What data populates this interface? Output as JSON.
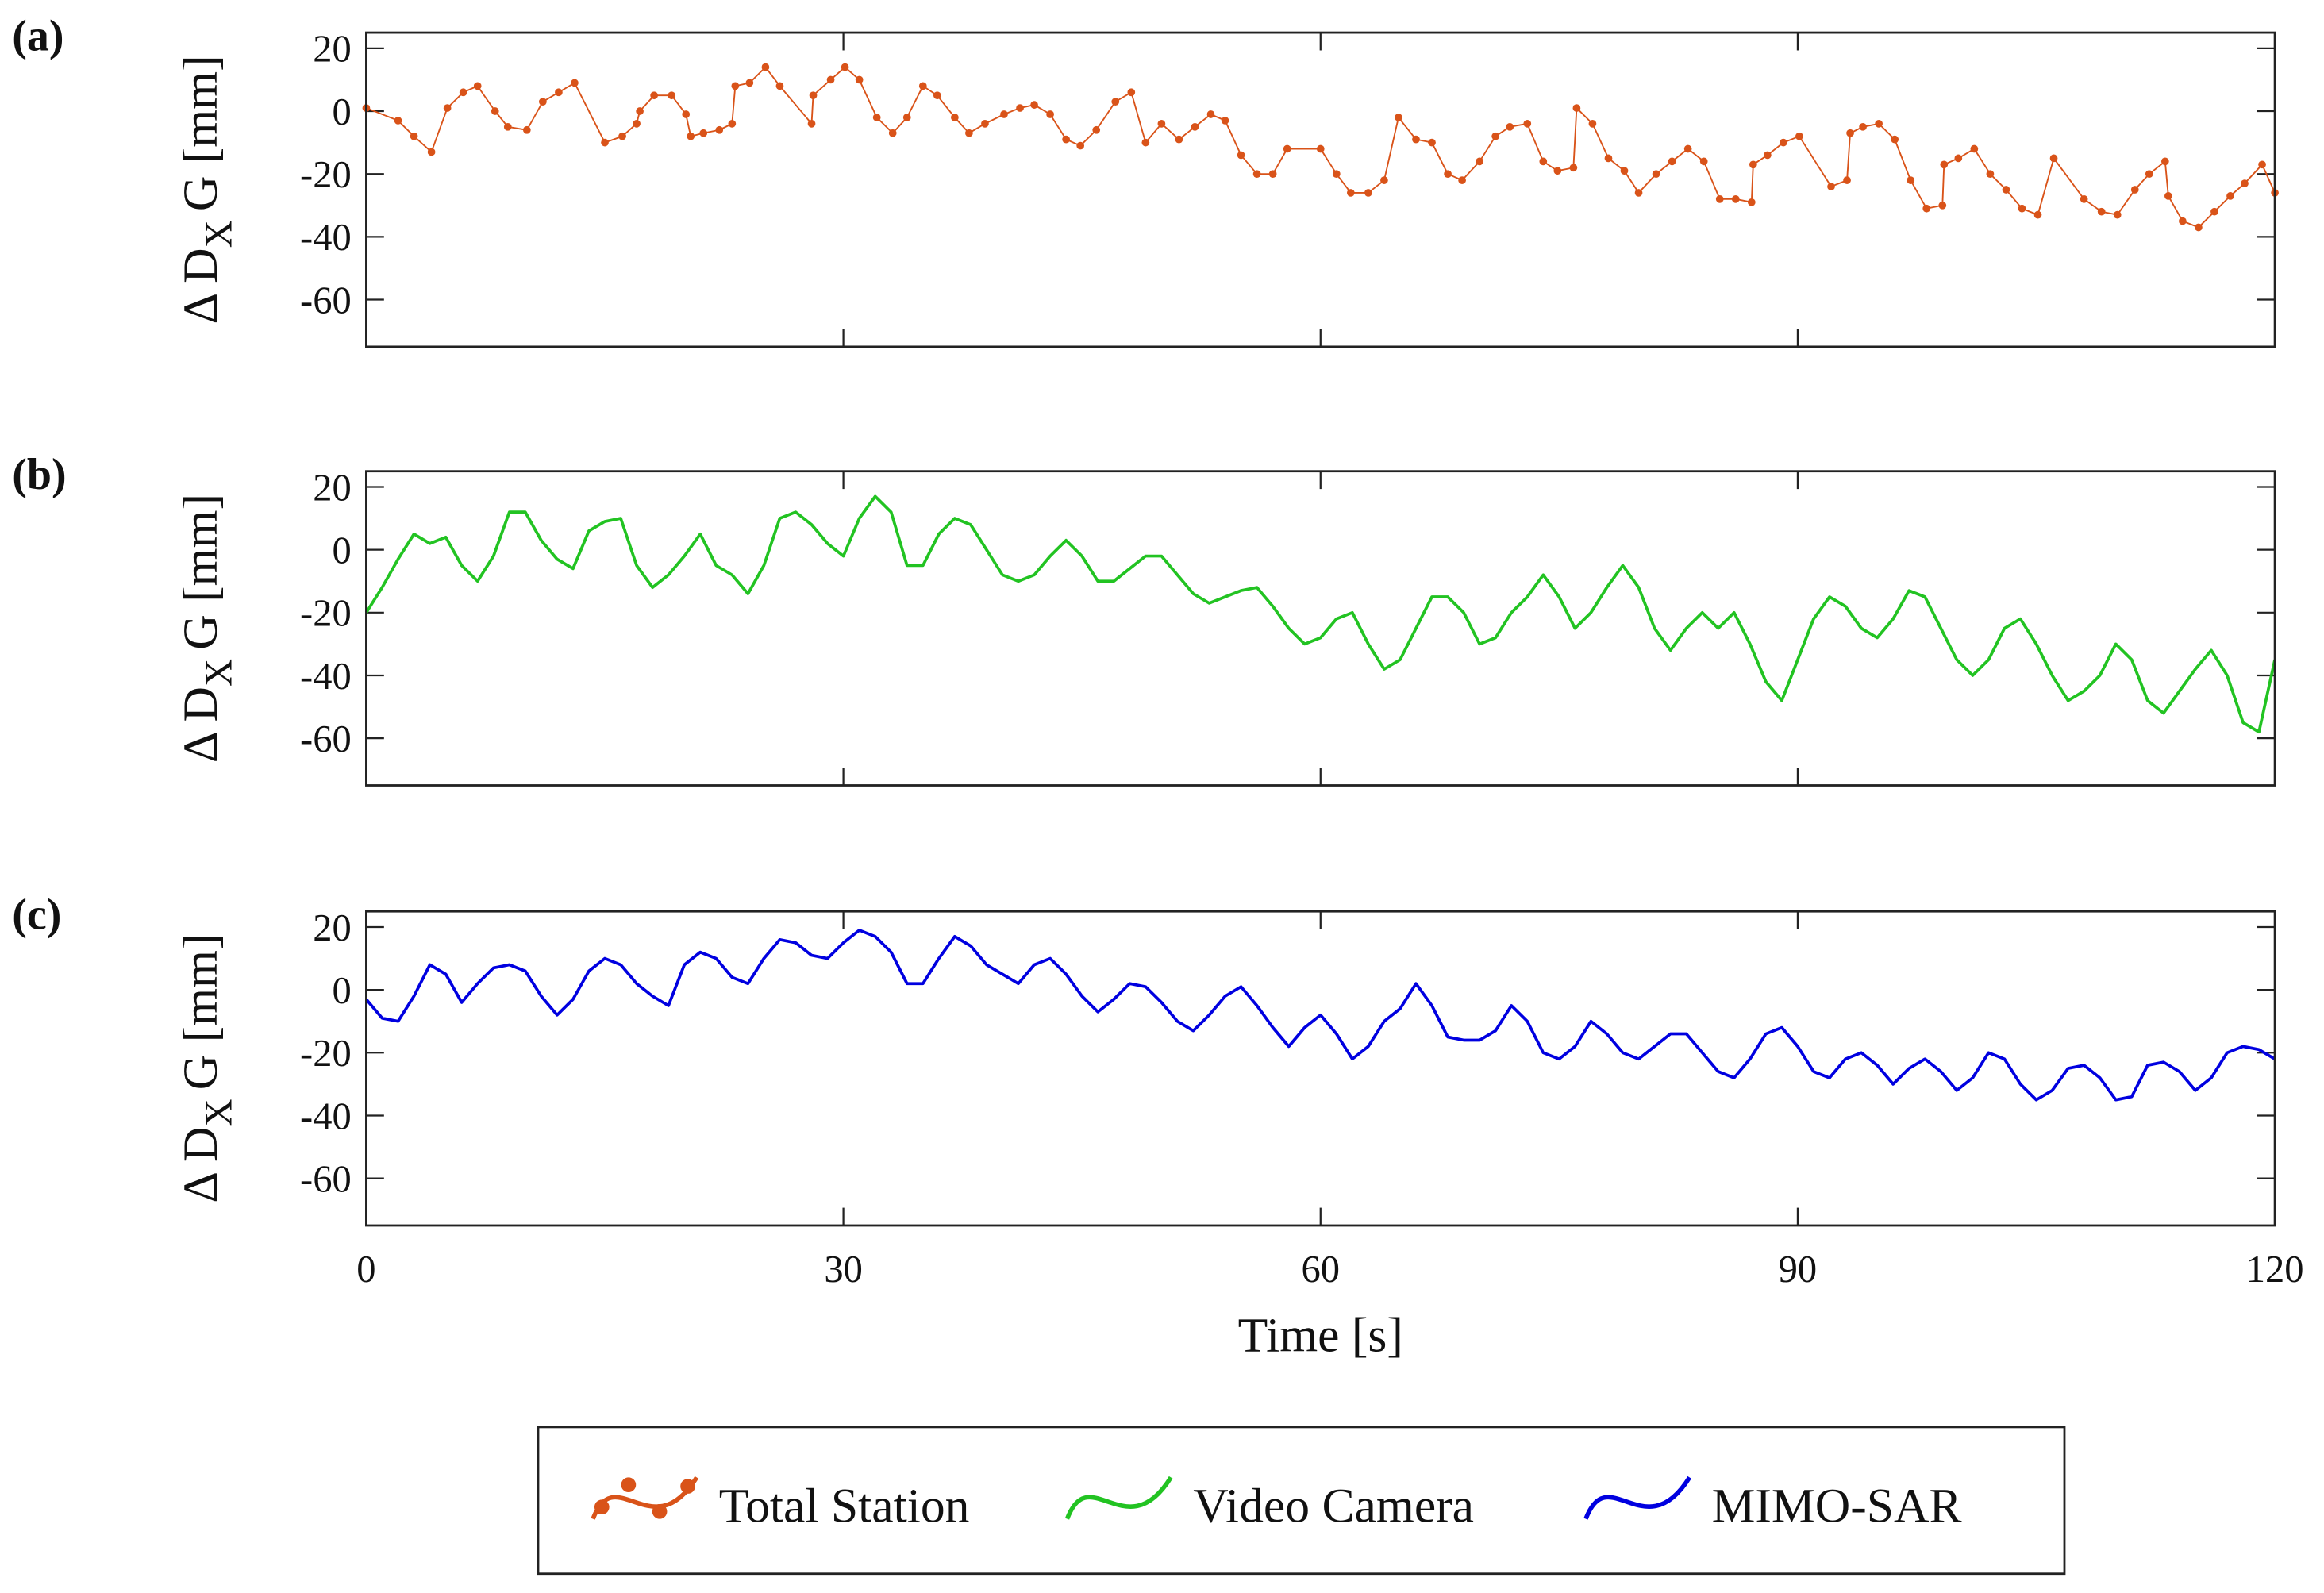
{
  "chart_data": [
    {
      "type": "line",
      "panel_label": "(a)",
      "ylabel": {
        "main": "Δ D",
        "sub": "X",
        "rest": "G [mm]"
      },
      "xlim": [
        0,
        120
      ],
      "ylim": [
        -75,
        25
      ],
      "xticks": [
        0,
        30,
        60,
        90,
        120
      ],
      "yticks": [
        20,
        0,
        -20,
        -40,
        -60
      ],
      "x": [
        0,
        2.0,
        3.0,
        4.1,
        5.1,
        6.1,
        7.0,
        8.1,
        8.9,
        10.1,
        11.1,
        12.1,
        13.1,
        15.0,
        16.1,
        17.0,
        17.2,
        18.1,
        19.2,
        20.1,
        20.4,
        21.2,
        22.2,
        23.0,
        23.2,
        24.1,
        25.1,
        26.0,
        28.0,
        28.1,
        29.2,
        30.1,
        31.0,
        32.1,
        33.1,
        34.0,
        35.0,
        35.9,
        37.0,
        37.9,
        38.9,
        40.1,
        41.1,
        42.0,
        43.0,
        44.0,
        44.9,
        45.9,
        47.1,
        48.1,
        49.0,
        50.0,
        51.1,
        52.1,
        53.1,
        54.0,
        55.0,
        56.0,
        57.0,
        57.9,
        60.0,
        61.0,
        61.9,
        63.0,
        64.0,
        64.9,
        66.0,
        67.0,
        68.0,
        68.9,
        70.0,
        71.0,
        71.9,
        73.0,
        74.0,
        74.9,
        75.9,
        76.1,
        77.1,
        78.1,
        79.1,
        80.0,
        81.1,
        82.1,
        83.1,
        84.1,
        85.1,
        86.1,
        87.1,
        87.2,
        88.1,
        89.1,
        90.1,
        92.1,
        93.1,
        93.3,
        94.1,
        95.1,
        96.1,
        97.1,
        98.1,
        99.1,
        99.2,
        100.1,
        101.1,
        102.1,
        103.1,
        104.1,
        105.1,
        106.1,
        108.0,
        109.1,
        110.1,
        111.2,
        112.1,
        113.1,
        113.3,
        114.2,
        115.2,
        116.2,
        117.2,
        118.1,
        119.2,
        120
      ],
      "series": [
        {
          "name": "Total Station",
          "color": "#d95319",
          "marker": true,
          "values": [
            1,
            -3,
            -8,
            -13,
            1,
            6,
            8,
            0,
            -5,
            -6,
            3,
            6,
            9,
            -10,
            -8,
            -4,
            0,
            5,
            5,
            -1,
            -8,
            -7,
            -6,
            -4,
            8,
            9,
            14,
            8,
            -4,
            5,
            10,
            14,
            10,
            -2,
            -7,
            -2,
            8,
            5,
            -2,
            -7,
            -4,
            -1,
            1,
            2,
            -1,
            -9,
            -11,
            -6,
            3,
            6,
            -10,
            -4,
            -9,
            -5,
            -1,
            -3,
            -14,
            -20,
            -20,
            -12,
            -12,
            -20,
            -26,
            -26,
            -22,
            -2,
            -9,
            -10,
            -20,
            -22,
            -16,
            -8,
            -5,
            -4,
            -16,
            -19,
            -18,
            1,
            -4,
            -15,
            -19,
            -26,
            -20,
            -16,
            -12,
            -16,
            -28,
            -28,
            -29,
            -17,
            -14,
            -10,
            -8,
            -24,
            -22,
            -7,
            -5,
            -4,
            -9,
            -22,
            -31,
            -30,
            -17,
            -15,
            -12,
            -20,
            -25,
            -31,
            -33,
            -15,
            -28,
            -32,
            -33,
            -25,
            -20,
            -16,
            -27,
            -35,
            -37,
            -32,
            -27,
            -23,
            -17,
            -26
          ]
        }
      ]
    },
    {
      "type": "line",
      "panel_label": "(b)",
      "ylabel": {
        "main": "Δ D",
        "sub": "X",
        "rest": "G [mm]"
      },
      "xlim": [
        0,
        120
      ],
      "ylim": [
        -75,
        25
      ],
      "xticks": [
        0,
        30,
        60,
        90,
        120
      ],
      "yticks": [
        20,
        0,
        -20,
        -40,
        -60
      ],
      "x": [
        0,
        1,
        2,
        3,
        4,
        5,
        6,
        7,
        8,
        9,
        10,
        11,
        12,
        13,
        14,
        15,
        16,
        17,
        18,
        19,
        20,
        21,
        22,
        23,
        24,
        25,
        26,
        27,
        28,
        29,
        30,
        31,
        32,
        33,
        34,
        35,
        36,
        37,
        38,
        39,
        40,
        41,
        42,
        43,
        44,
        45,
        46,
        47,
        48,
        49,
        50,
        51,
        52,
        53,
        54,
        55,
        56,
        57,
        58,
        59,
        60,
        61,
        62,
        63,
        64,
        65,
        66,
        67,
        68,
        69,
        70,
        71,
        72,
        73,
        74,
        75,
        76,
        77,
        78,
        79,
        80,
        81,
        82,
        83,
        84,
        85,
        86,
        87,
        88,
        89,
        90,
        91,
        92,
        93,
        94,
        95,
        96,
        97,
        98,
        99,
        100,
        101,
        102,
        103,
        104,
        105,
        106,
        107,
        108,
        109,
        110,
        111,
        112,
        113,
        114,
        115,
        116,
        117,
        118,
        119,
        120
      ],
      "series": [
        {
          "name": "Video Camera",
          "color": "#22c322",
          "values": [
            -20,
            -12,
            -3,
            5,
            2,
            4,
            -5,
            -10,
            -2,
            12,
            12,
            3,
            -3,
            -6,
            6,
            9,
            10,
            -5,
            -12,
            -8,
            -2,
            5,
            -5,
            -8,
            -14,
            -5,
            10,
            12,
            8,
            2,
            -2,
            10,
            17,
            12,
            -5,
            -5,
            5,
            10,
            8,
            0,
            -8,
            -10,
            -8,
            -2,
            3,
            -2,
            -10,
            -10,
            -6,
            -2,
            -2,
            -8,
            -14,
            -17,
            -15,
            -13,
            -12,
            -18,
            -25,
            -30,
            -28,
            -22,
            -20,
            -30,
            -38,
            -35,
            -25,
            -15,
            -15,
            -20,
            -30,
            -28,
            -20,
            -15,
            -8,
            -15,
            -25,
            -20,
            -12,
            -5,
            -12,
            -25,
            -32,
            -25,
            -20,
            -25,
            -20,
            -30,
            -42,
            -48,
            -35,
            -22,
            -15,
            -18,
            -25,
            -28,
            -22,
            -13,
            -15,
            -25,
            -35,
            -40,
            -35,
            -25,
            -22,
            -30,
            -40,
            -48,
            -45,
            -40,
            -30,
            -35,
            -48,
            -52,
            -45,
            -38,
            -32,
            -40,
            -55,
            -58,
            -35
          ]
        }
      ]
    },
    {
      "type": "line",
      "panel_label": "(c)",
      "ylabel": {
        "main": "Δ D",
        "sub": "X",
        "rest": "G [mm]"
      },
      "xlabel": "Time [s]",
      "xtick_labels": true,
      "xlim": [
        0,
        120
      ],
      "ylim": [
        -75,
        25
      ],
      "xticks": [
        0,
        30,
        60,
        90,
        120
      ],
      "yticks": [
        20,
        0,
        -20,
        -40,
        -60
      ],
      "x": [
        0,
        1,
        2,
        3,
        4,
        5,
        6,
        7,
        8,
        9,
        10,
        11,
        12,
        13,
        14,
        15,
        16,
        17,
        18,
        19,
        20,
        21,
        22,
        23,
        24,
        25,
        26,
        27,
        28,
        29,
        30,
        31,
        32,
        33,
        34,
        35,
        36,
        37,
        38,
        39,
        40,
        41,
        42,
        43,
        44,
        45,
        46,
        47,
        48,
        49,
        50,
        51,
        52,
        53,
        54,
        55,
        56,
        57,
        58,
        59,
        60,
        61,
        62,
        63,
        64,
        65,
        66,
        67,
        68,
        69,
        70,
        71,
        72,
        73,
        74,
        75,
        76,
        77,
        78,
        79,
        80,
        81,
        82,
        83,
        84,
        85,
        86,
        87,
        88,
        89,
        90,
        91,
        92,
        93,
        94,
        95,
        96,
        97,
        98,
        99,
        100,
        101,
        102,
        103,
        104,
        105,
        106,
        107,
        108,
        109,
        110,
        111,
        112,
        113,
        114,
        115,
        116,
        117,
        118,
        119,
        120
      ],
      "series": [
        {
          "name": "MIMO-SAR",
          "color": "#0000e0",
          "values": [
            -3,
            -9,
            -10,
            -2,
            8,
            5,
            -4,
            2,
            7,
            8,
            6,
            -2,
            -8,
            -3,
            6,
            10,
            8,
            2,
            -2,
            -5,
            8,
            12,
            10,
            4,
            2,
            10,
            16,
            15,
            11,
            10,
            15,
            19,
            17,
            12,
            2,
            2,
            10,
            17,
            14,
            8,
            5,
            2,
            8,
            10,
            5,
            -2,
            -7,
            -3,
            2,
            1,
            -4,
            -10,
            -13,
            -8,
            -2,
            1,
            -5,
            -12,
            -18,
            -12,
            -8,
            -14,
            -22,
            -18,
            -10,
            -6,
            2,
            -5,
            -15,
            -16,
            -16,
            -13,
            -5,
            -10,
            -20,
            -22,
            -18,
            -10,
            -14,
            -20,
            -22,
            -18,
            -14,
            -14,
            -20,
            -26,
            -28,
            -22,
            -14,
            -12,
            -18,
            -26,
            -28,
            -22,
            -20,
            -24,
            -30,
            -25,
            -22,
            -26,
            -32,
            -28,
            -20,
            -22,
            -30,
            -35,
            -32,
            -25,
            -24,
            -28,
            -35,
            -34,
            -24,
            -23,
            -26,
            -32,
            -28,
            -20,
            -18,
            -19,
            -22
          ]
        }
      ]
    }
  ]
}
